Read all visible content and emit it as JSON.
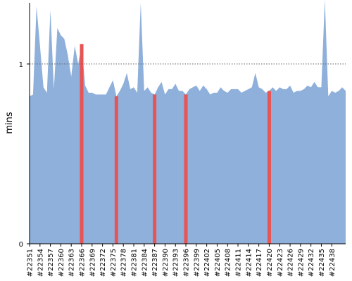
{
  "chart_data": {
    "type": "area",
    "ylabel": "mins",
    "xlabel": "",
    "ylim": [
      0,
      1.34
    ],
    "yticks": [
      0,
      1
    ],
    "reference_line": {
      "y": 1,
      "style": "dotted"
    },
    "colors": {
      "area": "#8fb0da",
      "highlight": "#e85454",
      "reference": "#666666",
      "axis": "#000000"
    },
    "x_tick_labels": [
      "#22351",
      "#22354",
      "#22357",
      "#22360",
      "#22363",
      "#22366",
      "#22369",
      "#22372",
      "#22375",
      "#22378",
      "#22381",
      "#22384",
      "#22387",
      "#22390",
      "#22393",
      "#22396",
      "#22399",
      "#22402",
      "#22405",
      "#22408",
      "#22411",
      "#22414",
      "#22417",
      "#22420",
      "#22423",
      "#22426",
      "#22429",
      "#22432",
      "#22435",
      "#22438"
    ],
    "series": [
      {
        "x_start": 22351,
        "values": [
          0.82,
          0.83,
          1.32,
          1.1,
          0.87,
          0.84,
          1.3,
          0.86,
          1.2,
          1.16,
          1.14,
          1.05,
          0.93,
          1.1,
          1.0,
          1.11,
          0.88,
          0.84,
          0.84,
          0.83,
          0.83,
          0.83,
          0.83,
          0.87,
          0.91,
          0.82,
          0.85,
          0.89,
          0.95,
          0.86,
          0.87,
          0.84,
          1.34,
          0.85,
          0.87,
          0.84,
          0.83,
          0.87,
          0.9,
          0.83,
          0.86,
          0.86,
          0.89,
          0.85,
          0.85,
          0.83,
          0.86,
          0.87,
          0.88,
          0.85,
          0.88,
          0.86,
          0.83,
          0.84,
          0.84,
          0.87,
          0.85,
          0.84,
          0.86,
          0.86,
          0.86,
          0.84,
          0.85,
          0.86,
          0.87,
          0.95,
          0.87,
          0.86,
          0.84,
          0.85,
          0.87,
          0.85,
          0.87,
          0.86,
          0.86,
          0.88,
          0.84,
          0.85,
          0.85,
          0.86,
          0.88,
          0.87,
          0.9,
          0.87,
          0.87,
          1.36,
          0.82,
          0.85,
          0.84,
          0.85,
          0.87,
          0.85
        ]
      }
    ],
    "highlighted_builds": [
      22366,
      22376,
      22387,
      22396,
      22420
    ]
  }
}
